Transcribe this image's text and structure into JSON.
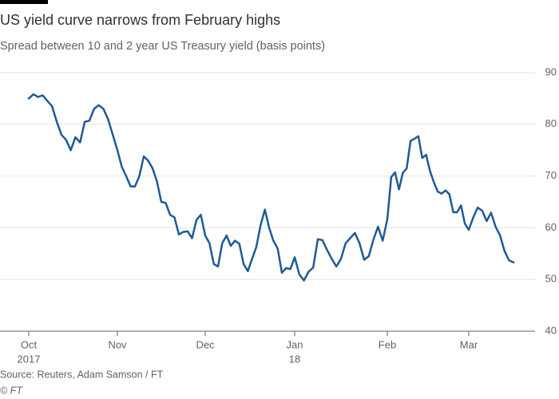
{
  "chart_data": {
    "type": "line",
    "title": "US yield curve narrows from February highs",
    "subtitle": "Spread between 10 and 2 year US Treasury yield (basis points)",
    "source": "Source: Reuters, Adam Samson / FT",
    "copyright": "© FT",
    "color": "#1f5a96",
    "grid": true,
    "ylim": [
      40,
      90
    ],
    "yticks": [
      40,
      50,
      60,
      70,
      80,
      90
    ],
    "categories": [
      "Oct",
      null,
      null,
      null,
      null,
      null,
      null,
      null,
      null,
      null,
      null,
      null,
      null,
      null,
      null,
      null,
      null,
      null,
      null,
      "Nov",
      null,
      null,
      null,
      null,
      null,
      null,
      null,
      null,
      null,
      null,
      null,
      null,
      null,
      null,
      null,
      null,
      null,
      null,
      null,
      "Dec",
      null,
      null,
      null,
      null,
      null,
      null,
      null,
      null,
      null,
      null,
      null,
      null,
      null,
      null,
      null,
      null,
      null,
      null,
      null,
      null,
      "Jan",
      null,
      null,
      null,
      null,
      null,
      null,
      null,
      null,
      null,
      null,
      null,
      null,
      null,
      null,
      null,
      null,
      null,
      null,
      null,
      "Feb",
      null,
      null,
      null,
      null,
      null,
      null,
      null,
      null,
      null,
      null,
      null,
      null,
      null,
      null,
      null,
      null,
      null,
      null,
      null,
      null,
      "Mar",
      null,
      null,
      null,
      null,
      null,
      null,
      null,
      null,
      null,
      null
    ],
    "year_labels": [
      {
        "index": 0,
        "label": "2017"
      },
      {
        "index": 60,
        "label": "18"
      }
    ],
    "values": [
      85,
      85.8,
      85.3,
      85.6,
      84.5,
      83.5,
      80.5,
      78,
      77,
      75,
      77.5,
      76.5,
      80.5,
      80.7,
      83,
      83.7,
      83,
      81,
      78,
      75,
      71.8,
      70,
      68,
      68,
      70,
      73.8,
      73,
      71.5,
      69,
      65,
      64.8,
      62.5,
      62,
      58.7,
      59.2,
      59.3,
      58,
      61.5,
      62.5,
      58.5,
      57,
      53,
      52.5,
      57,
      58.5,
      56.5,
      57.5,
      56.9,
      53,
      51.6,
      54,
      56.3,
      60.5,
      63.5,
      60,
      57.5,
      56,
      51.3,
      52.2,
      52,
      54.3,
      51,
      49.8,
      51.5,
      52.3,
      57.8,
      57.6,
      55.7,
      54,
      52.5,
      54,
      57,
      58,
      59,
      57,
      53.8,
      54.5,
      57.7,
      60.2,
      57.5,
      61.6,
      69.8,
      70.7,
      67.4,
      70.6,
      71.5,
      76.8,
      77.2,
      77.7,
      73.5,
      74.1,
      71,
      68.8,
      67,
      66.6,
      67.2,
      66.5,
      63,
      63,
      64.3,
      60.8,
      59.6,
      62,
      63.9,
      63.3,
      61.3,
      62.9,
      60.2,
      58.5,
      55.5,
      53.7,
      53.3
    ]
  }
}
